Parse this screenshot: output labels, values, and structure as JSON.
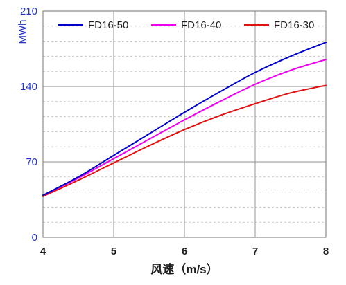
{
  "chart_data": {
    "type": "line",
    "title": "",
    "xlabel": "风速（m/s）",
    "ylabel": "MWh",
    "xlim": [
      4,
      8
    ],
    "ylim": [
      0,
      210
    ],
    "xticks": [
      "4",
      "5",
      "6",
      "7",
      "8"
    ],
    "yticks": [
      "0",
      "70",
      "140",
      "210"
    ],
    "grid": true,
    "legend_position": "top",
    "x": [
      4,
      4.5,
      5,
      5.5,
      6,
      6.5,
      7,
      7.5,
      8
    ],
    "series": [
      {
        "name": "FD16-50",
        "color": "#0000cc",
        "values": [
          39,
          56,
          76,
          96,
          116,
          135,
          153,
          168,
          181
        ]
      },
      {
        "name": "FD16-40",
        "color": "#ee00ee",
        "values": [
          39,
          55,
          73,
          91,
          109,
          126,
          142,
          155,
          165
        ]
      },
      {
        "name": "FD16-30",
        "color": "#e31010",
        "values": [
          38,
          53,
          69,
          85,
          100,
          113,
          124,
          134,
          141
        ]
      }
    ]
  }
}
